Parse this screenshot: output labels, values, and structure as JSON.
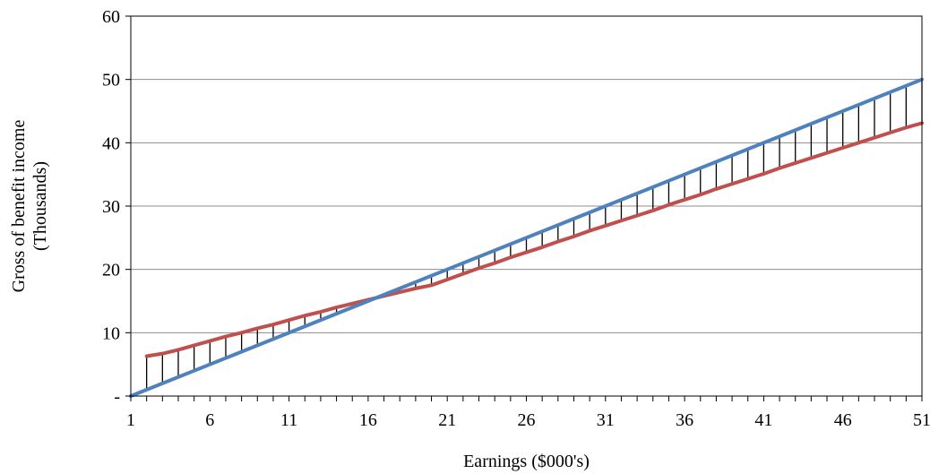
{
  "chart_data": {
    "type": "line",
    "xlabel": "Earnings ($000's)",
    "ylabel_lines": [
      "Gross of benefit income",
      "(Thousands)"
    ],
    "x_ticks": [
      1,
      6,
      11,
      16,
      21,
      26,
      31,
      36,
      41,
      46,
      51
    ],
    "x_range": [
      1,
      51
    ],
    "y_ticks": [
      {
        "value": 0,
        "label": "-"
      },
      {
        "value": 10,
        "label": "10"
      },
      {
        "value": 20,
        "label": "20"
      },
      {
        "value": 30,
        "label": "30"
      },
      {
        "value": 40,
        "label": "40"
      },
      {
        "value": 50,
        "label": "50"
      },
      {
        "value": 60,
        "label": "60"
      }
    ],
    "ylim": [
      0,
      60
    ],
    "grid": "horizontal",
    "series": [
      {
        "color": "#4f81bd",
        "x": [
          1,
          51
        ],
        "y": [
          0,
          50
        ]
      },
      {
        "color": "#c0504d",
        "x": [
          2,
          3,
          4,
          5,
          6,
          7,
          8,
          9,
          10,
          11,
          12,
          13,
          14,
          15,
          16,
          17,
          18,
          19,
          20,
          21,
          22,
          23,
          24,
          25,
          26,
          27,
          28,
          29,
          30,
          31,
          32,
          33,
          34,
          35,
          36,
          37,
          38,
          39,
          40,
          41,
          42,
          43,
          44,
          45,
          46,
          47,
          48,
          49,
          50,
          51
        ],
        "y": [
          6.3,
          6.7,
          7.3,
          8.0,
          8.7,
          9.4,
          10.0,
          10.7,
          11.3,
          12.0,
          12.7,
          13.3,
          14.0,
          14.6,
          15.2,
          15.8,
          16.4,
          17.0,
          17.5,
          18.4,
          19.3,
          20.2,
          21.0,
          21.9,
          22.7,
          23.5,
          24.4,
          25.2,
          26.1,
          26.9,
          27.7,
          28.5,
          29.3,
          30.2,
          31.0,
          31.8,
          32.7,
          33.5,
          34.3,
          35.1,
          36.0,
          36.8,
          37.6,
          38.4,
          39.2,
          40.0,
          40.8,
          41.6,
          42.4,
          43.1
        ]
      }
    ],
    "drop_lines": true
  }
}
